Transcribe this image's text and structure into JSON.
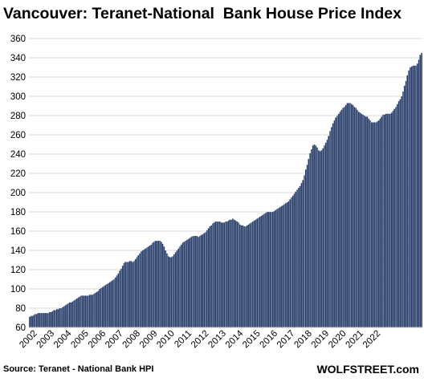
{
  "chart_data": {
    "type": "bar",
    "title": "Vancouver: Teranet-National  Bank House Price Index",
    "source": "Source: Teranet - National Bank HPI",
    "watermark": "WOLFSTREET.com",
    "xlabel": "",
    "ylabel": "",
    "ylim": [
      60,
      360
    ],
    "yticks": [
      60,
      80,
      100,
      120,
      140,
      160,
      180,
      200,
      220,
      240,
      260,
      280,
      300,
      320,
      340,
      360
    ],
    "xticks": [
      "2002",
      "2003",
      "2004",
      "2005",
      "2006",
      "2007",
      "2008",
      "2009",
      "2010",
      "2011",
      "2012",
      "2013",
      "2014",
      "2015",
      "2016",
      "2017",
      "2018",
      "2019",
      "2020",
      "2021",
      "2022"
    ],
    "grid": "horizontal",
    "bar_color": "#243a67",
    "start": "2002-01",
    "series": [
      {
        "values": [
          71,
          72,
          72,
          73,
          74,
          74,
          75,
          75,
          75,
          75,
          75,
          75,
          75,
          75,
          76,
          76,
          77,
          78,
          78,
          79,
          79,
          80,
          80,
          81,
          82,
          83,
          84,
          85,
          86,
          86,
          87,
          88,
          89,
          90,
          91,
          92,
          93,
          93,
          93,
          93,
          93,
          93,
          94,
          94,
          94,
          95,
          96,
          97,
          98,
          100,
          101,
          102,
          103,
          104,
          105,
          106,
          107,
          108,
          109,
          110,
          112,
          114,
          116,
          119,
          121,
          124,
          127,
          128,
          128,
          128,
          129,
          129,
          128,
          129,
          131,
          133,
          135,
          137,
          139,
          140,
          141,
          142,
          143,
          144,
          145,
          146,
          148,
          149,
          150,
          150,
          150,
          150,
          149,
          147,
          144,
          140,
          137,
          134,
          133,
          133,
          134,
          136,
          138,
          140,
          142,
          144,
          146,
          148,
          149,
          150,
          151,
          152,
          153,
          154,
          155,
          155,
          155,
          155,
          154,
          155,
          156,
          157,
          158,
          159,
          161,
          163,
          165,
          166,
          168,
          169,
          170,
          170,
          170,
          170,
          169,
          169,
          169,
          170,
          170,
          171,
          172,
          172,
          173,
          172,
          171,
          170,
          169,
          167,
          166,
          166,
          165,
          165,
          166,
          167,
          168,
          169,
          170,
          171,
          172,
          173,
          174,
          175,
          176,
          177,
          178,
          179,
          180,
          180,
          180,
          180,
          180,
          181,
          182,
          183,
          184,
          185,
          186,
          187,
          188,
          189,
          190,
          191,
          193,
          195,
          197,
          199,
          201,
          203,
          205,
          207,
          210,
          213,
          218,
          224,
          229,
          235,
          241,
          245,
          249,
          250,
          249,
          247,
          244,
          243,
          244,
          246,
          249,
          252,
          255,
          259,
          264,
          268,
          272,
          275,
          278,
          280,
          282,
          284,
          286,
          288,
          289,
          291,
          293,
          293,
          293,
          292,
          291,
          289,
          288,
          286,
          284,
          283,
          282,
          281,
          280,
          279,
          279,
          277,
          275,
          273,
          273,
          273,
          273,
          274,
          275,
          277,
          279,
          281,
          281,
          282,
          282,
          282,
          282,
          283,
          285,
          287,
          289,
          292,
          295,
          297,
          300,
          305,
          311,
          316,
          322,
          327,
          330,
          331,
          332,
          332,
          332,
          334,
          338,
          343,
          345
        ]
      }
    ]
  }
}
